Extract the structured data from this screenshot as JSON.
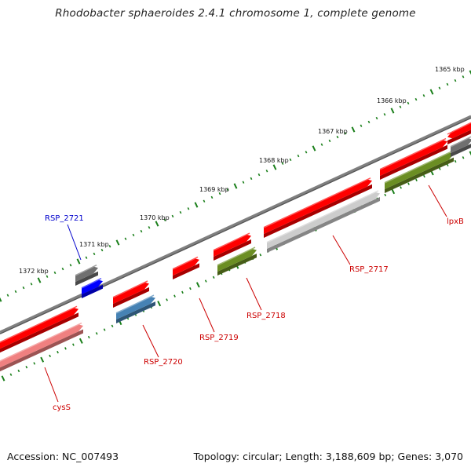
{
  "title": "Rhodobacter sphaeroides 2.4.1 chromosome 1, complete genome",
  "footer": {
    "accession": "Accession: NC_007493",
    "topology": "Topology: circular; Length: 3,188,609 bp; Genes: 3,070"
  },
  "colors": {
    "backbone": "#808080",
    "tick": "#1a7f1a",
    "gene_red": "#ff0000",
    "gene_pink": "#f08080",
    "gene_gray": "#cccccc",
    "gene_olive": "#6b8e23",
    "gene_steelblue": "#4682b4",
    "gene_darkgray": "#707070",
    "gene_blue": "#0000ff",
    "label_red": "#cc0000",
    "label_blue": "#0000cc"
  },
  "scale_labels": [
    "1365 kbp",
    "1366 kbp",
    "1367 kbp",
    "1368 kbp",
    "1369 kbp",
    "1370 kbp",
    "1371 kbp",
    "1372 kbp"
  ],
  "gene_labels": [
    {
      "name": "RSP_2721",
      "color": "blue"
    },
    {
      "name": "RSP_2720",
      "color": "red"
    },
    {
      "name": "RSP_2719",
      "color": "red"
    },
    {
      "name": "RSP_2718",
      "color": "red"
    },
    {
      "name": "RSP_2717",
      "color": "red"
    },
    {
      "name": "lpxB",
      "color": "red"
    },
    {
      "name": "cysS",
      "color": "red"
    }
  ]
}
